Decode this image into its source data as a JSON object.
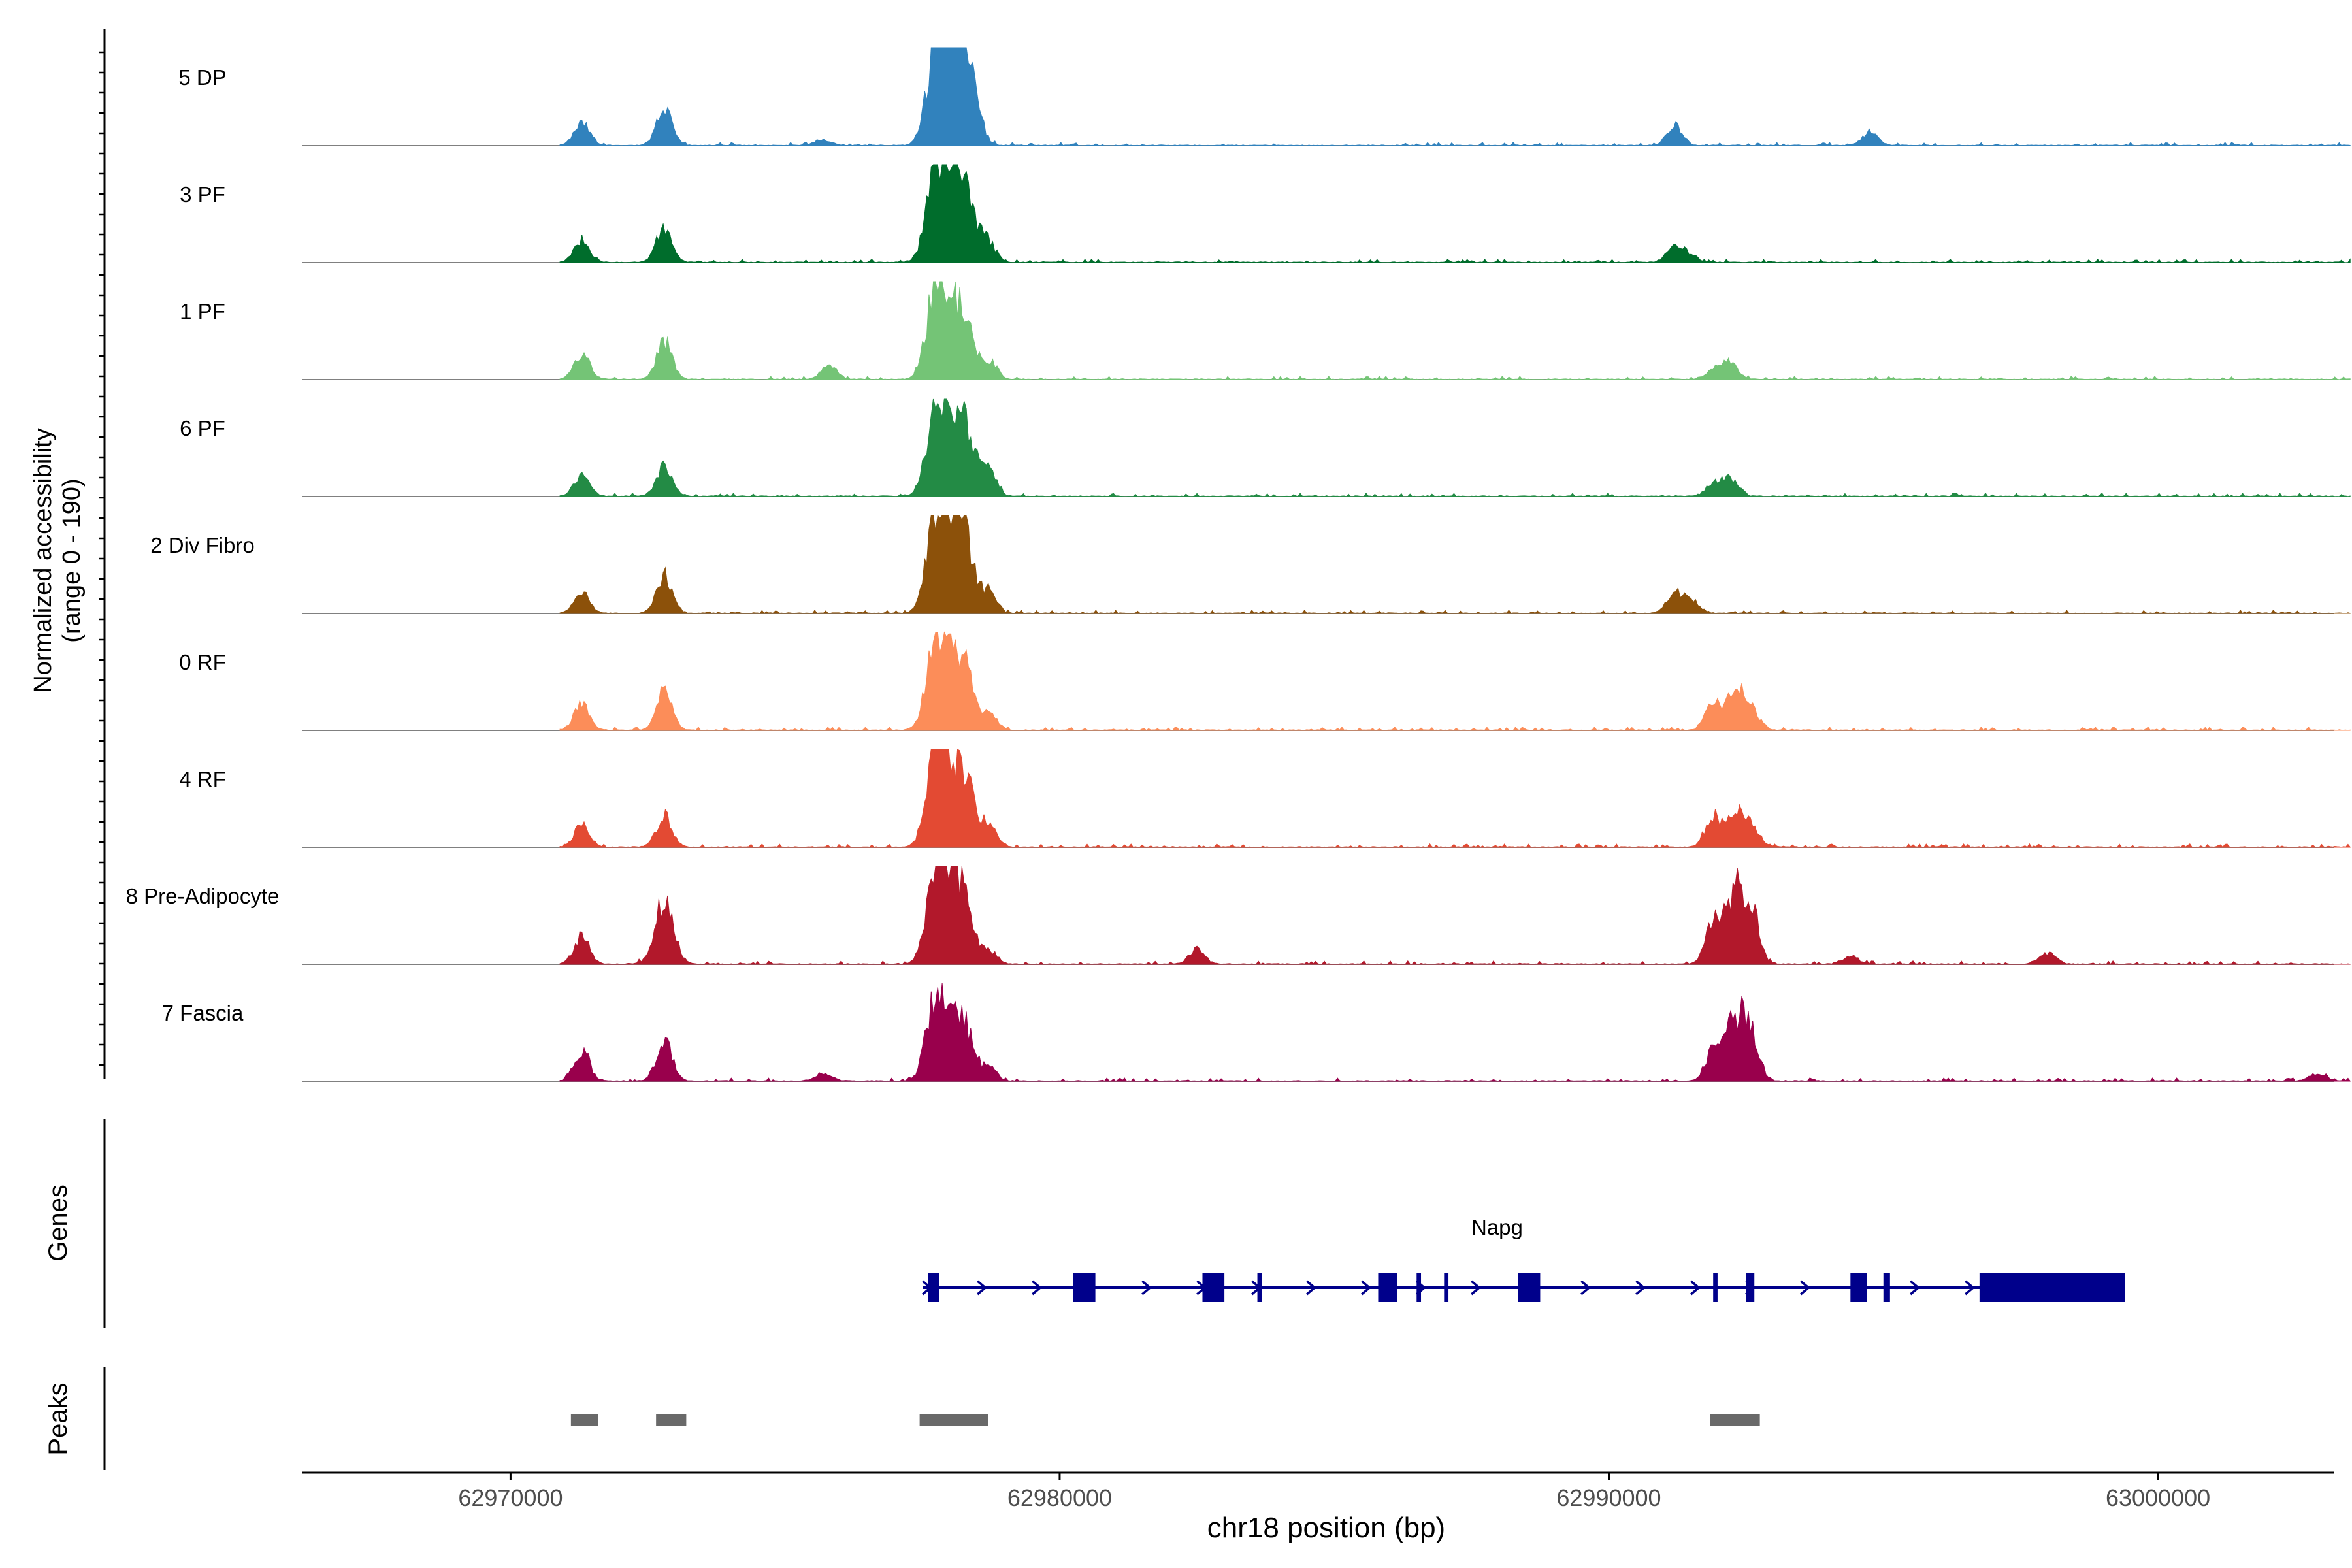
{
  "chart_data": {
    "type": "area",
    "title": "",
    "ylabel": "Normalized accessibility\n(range 0 - 190)",
    "ylabel_lines": [
      "Normalized accessibility",
      "(range 0 - 190)"
    ],
    "ylim": [
      0,
      190
    ],
    "xlabel": "chr18 position (bp)",
    "xlim": [
      62966200,
      63003200
    ],
    "x_ticks": [
      62970000,
      62980000,
      62990000,
      63000000
    ],
    "x_tick_labels": [
      "62970000",
      "62980000",
      "62990000",
      "63000000"
    ],
    "tracks": [
      {
        "name": "5 DP",
        "color": "#3182bd",
        "peaks": [
          [
            62971300,
            0.22
          ],
          [
            62972800,
            0.38
          ],
          [
            62977750,
            0.95
          ],
          [
            62978000,
            0.6
          ],
          [
            62978200,
            0.92
          ],
          [
            62978450,
            0.35
          ],
          [
            62991200,
            0.2
          ],
          [
            62994750,
            0.14
          ],
          [
            62975700,
            0.06
          ]
        ]
      },
      {
        "name": "3 PF",
        "color": "#006d2c",
        "peaks": [
          [
            62971300,
            0.22
          ],
          [
            62972800,
            0.35
          ],
          [
            62977750,
            0.95
          ],
          [
            62978050,
            0.55
          ],
          [
            62978300,
            0.65
          ],
          [
            62978700,
            0.2
          ],
          [
            62991200,
            0.15
          ],
          [
            62991450,
            0.08
          ]
        ]
      },
      {
        "name": "1 PF",
        "color": "#74c476",
        "peaks": [
          [
            62971300,
            0.25
          ],
          [
            62972800,
            0.38
          ],
          [
            62975800,
            0.14
          ],
          [
            62977750,
            0.95
          ],
          [
            62978050,
            0.55
          ],
          [
            62978300,
            0.48
          ],
          [
            62978700,
            0.2
          ],
          [
            62992200,
            0.16
          ],
          [
            62991900,
            0.1
          ]
        ]
      },
      {
        "name": "6 PF",
        "color": "#238b45",
        "peaks": [
          [
            62971300,
            0.22
          ],
          [
            62972800,
            0.3
          ],
          [
            62977750,
            0.9
          ],
          [
            62978050,
            0.55
          ],
          [
            62978300,
            0.55
          ],
          [
            62978700,
            0.25
          ],
          [
            62992200,
            0.18
          ],
          [
            62991900,
            0.12
          ]
        ]
      },
      {
        "name": "2 Div Fibro",
        "color": "#8c510a",
        "peaks": [
          [
            62971300,
            0.2
          ],
          [
            62972800,
            0.38
          ],
          [
            62977750,
            0.95
          ],
          [
            62978050,
            0.6
          ],
          [
            62978250,
            0.75
          ],
          [
            62978700,
            0.22
          ],
          [
            62991200,
            0.2
          ],
          [
            62991500,
            0.12
          ]
        ]
      },
      {
        "name": "0 RF",
        "color": "#fc8d59",
        "peaks": [
          [
            62971300,
            0.28
          ],
          [
            62972800,
            0.42
          ],
          [
            62977750,
            0.9
          ],
          [
            62978050,
            0.55
          ],
          [
            62978300,
            0.5
          ],
          [
            62978700,
            0.2
          ],
          [
            62992300,
            0.42
          ],
          [
            62991900,
            0.28
          ],
          [
            62992600,
            0.2
          ]
        ]
      },
      {
        "name": "4 RF",
        "color": "#e34a33",
        "peaks": [
          [
            62971300,
            0.22
          ],
          [
            62972800,
            0.32
          ],
          [
            62977750,
            0.95
          ],
          [
            62978050,
            0.55
          ],
          [
            62978300,
            0.55
          ],
          [
            62978700,
            0.22
          ],
          [
            62992300,
            0.4
          ],
          [
            62991900,
            0.3
          ],
          [
            62992600,
            0.22
          ]
        ]
      },
      {
        "name": "8 Pre-Adipocyte",
        "color": "#b2182b",
        "peaks": [
          [
            62971300,
            0.28
          ],
          [
            62972800,
            0.62
          ],
          [
            62977750,
            0.95
          ],
          [
            62978050,
            0.7
          ],
          [
            62978300,
            0.5
          ],
          [
            62978700,
            0.15
          ],
          [
            62982500,
            0.15
          ],
          [
            62992300,
            0.72
          ],
          [
            62991900,
            0.38
          ],
          [
            62992600,
            0.5
          ],
          [
            62994400,
            0.08
          ],
          [
            62998000,
            0.12
          ]
        ]
      },
      {
        "name": "7 Fascia",
        "color": "#99004c",
        "peaks": [
          [
            62971300,
            0.3
          ],
          [
            62972800,
            0.42
          ],
          [
            62975700,
            0.08
          ],
          [
            62977750,
            0.9
          ],
          [
            62978050,
            0.45
          ],
          [
            62978300,
            0.5
          ],
          [
            62978700,
            0.15
          ],
          [
            62992300,
            0.62
          ],
          [
            62991900,
            0.3
          ],
          [
            62992600,
            0.45
          ],
          [
            63002900,
            0.08
          ]
        ]
      }
    ],
    "genes": [
      {
        "name": "Napg",
        "strand": "+",
        "color": "#00008b",
        "start": 62977600,
        "end": 62999400,
        "exons": [
          [
            62977600,
            62977800
          ],
          [
            62980250,
            62980650
          ],
          [
            62982600,
            62983000
          ],
          [
            62983600,
            62983680
          ],
          [
            62985800,
            62986150
          ],
          [
            62986500,
            62986580
          ],
          [
            62987000,
            62987080
          ],
          [
            62988350,
            62988750
          ],
          [
            62991900,
            62991980
          ],
          [
            62992500,
            62992650
          ],
          [
            62994400,
            62994700
          ],
          [
            62995000,
            62995120
          ],
          [
            62996750,
            62999400
          ]
        ]
      }
    ],
    "peak_regions": {
      "color": "#696969",
      "regions": [
        [
          62971100,
          62971600
        ],
        [
          62972650,
          62973200
        ],
        [
          62977450,
          62978700
        ],
        [
          62991850,
          62992750
        ]
      ]
    },
    "panel_labels": {
      "genes": "Genes",
      "peaks": "Peaks"
    }
  }
}
